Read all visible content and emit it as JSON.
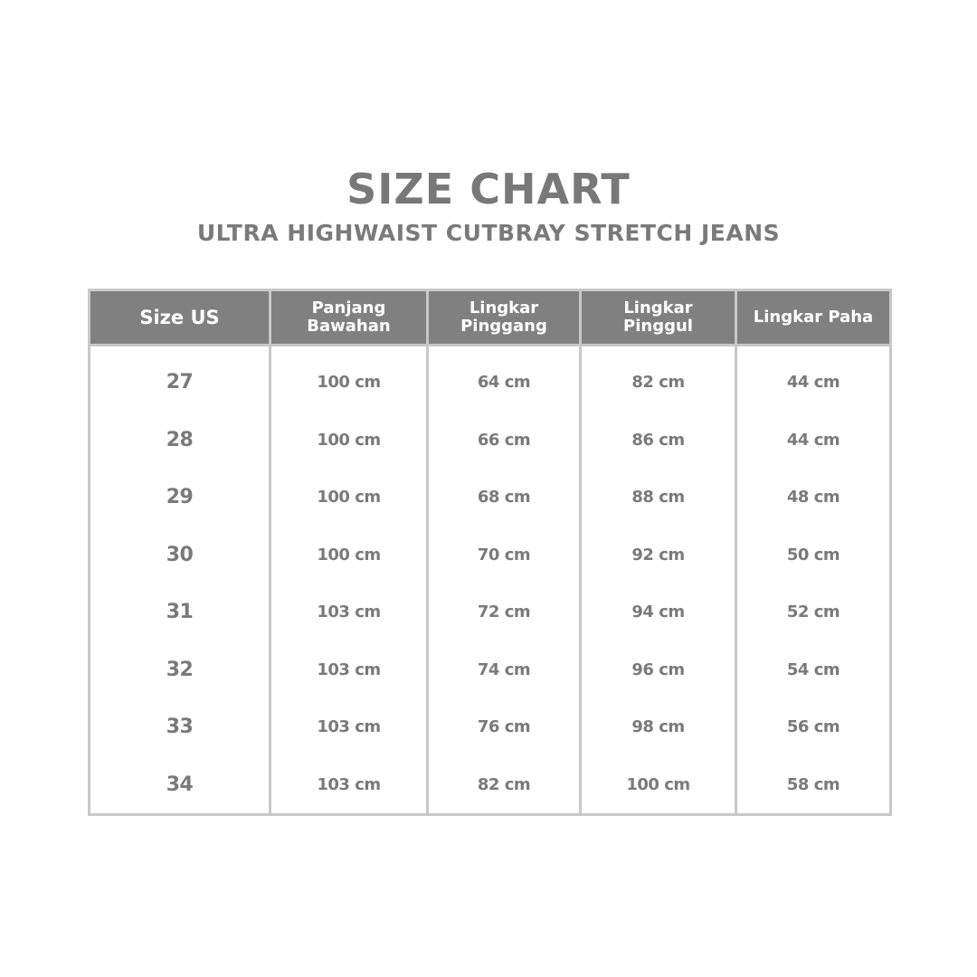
{
  "title": "SIZE CHART",
  "subtitle": "ULTRA HIGHWAIST CUTBRAY STRETCH JEANS",
  "colors": {
    "header_bg": "#808080",
    "border": "#c8c8c8",
    "text": "#7a7a7a"
  },
  "table": {
    "headers": [
      "Size US",
      "Panjang Bawahan",
      "Lingkar Pinggang",
      "Lingkar Pinggul",
      "Lingkar Paha"
    ],
    "rows": [
      [
        "27",
        "100 cm",
        "64 cm",
        "82 cm",
        "44 cm"
      ],
      [
        "28",
        "100 cm",
        "66 cm",
        "86 cm",
        "44 cm"
      ],
      [
        "29",
        "100 cm",
        "68 cm",
        "88 cm",
        "48 cm"
      ],
      [
        "30",
        "100 cm",
        "70 cm",
        "92 cm",
        "50 cm"
      ],
      [
        "31",
        "103 cm",
        "72 cm",
        "94 cm",
        "52 cm"
      ],
      [
        "32",
        "103 cm",
        "74 cm",
        "96 cm",
        "54 cm"
      ],
      [
        "33",
        "103 cm",
        "76 cm",
        "98 cm",
        "56 cm"
      ],
      [
        "34",
        "103 cm",
        "82 cm",
        "100 cm",
        "58 cm"
      ]
    ]
  }
}
